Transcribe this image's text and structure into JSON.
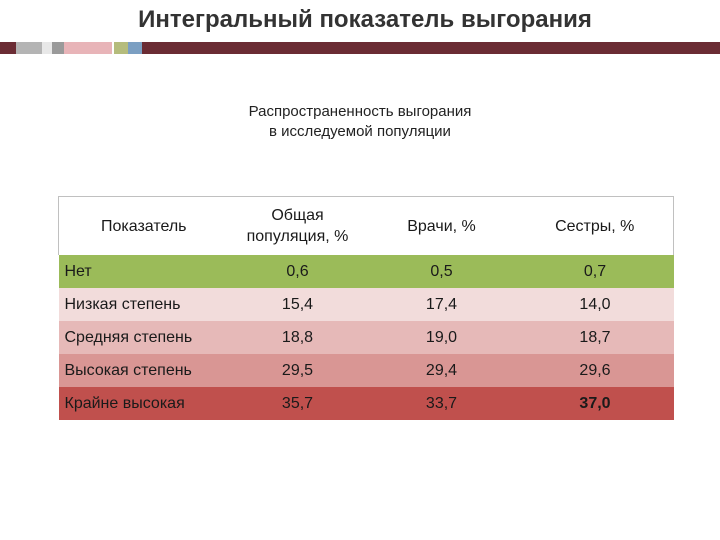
{
  "slide": {
    "title": "Интегральный показатель выгорания",
    "subtitle_line1": "Распространенность выгорания",
    "subtitle_line2": "в исследуемой популяции"
  },
  "stripe_colors": {
    "dark": "#6b2c34",
    "gray": "#b4b4b4",
    "pink": "#e8b4b8",
    "olive": "#b5bc7c",
    "blue": "#7b9fc2"
  },
  "table": {
    "headers": {
      "indicator": "Показатель",
      "general_line1": "Общая",
      "general_line2": "популяция, %",
      "doctors": "Врачи, %",
      "nurses": "Сестры, %"
    },
    "rows": [
      {
        "label": "Нет",
        "general": "0,6",
        "doctors": "0,5",
        "nurses": "0,7",
        "bg": "#9bbb59",
        "label_bold": true
      },
      {
        "label": "Низкая степень",
        "general": "15,4",
        "doctors": "17,4",
        "nurses": "14,0",
        "bg": "#f2dcdb",
        "label_bold": false
      },
      {
        "label": "Средняя степень",
        "general": "18,8",
        "doctors": "19,0",
        "nurses": "18,7",
        "bg": "#e6b9b8",
        "label_bold": false
      },
      {
        "label": "Высокая степень",
        "general": "29,5",
        "doctors": "29,4",
        "nurses": "29,6",
        "bg": "#d99694",
        "label_bold": false
      },
      {
        "label": "Крайне высокая",
        "general": "35,7",
        "doctors": "33,7",
        "nurses": "37,0",
        "bg": "#c0504d",
        "label_bold": false
      }
    ]
  }
}
